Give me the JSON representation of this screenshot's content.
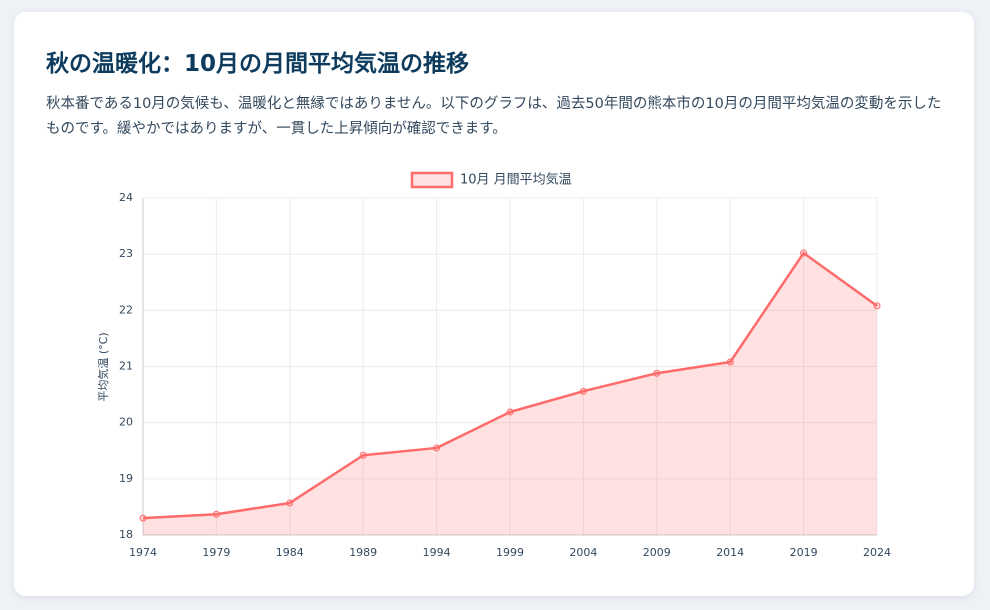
{
  "header": {
    "title": "秋の温暖化：10月の月間平均気温の推移",
    "description": "秋本番である10月の気候も、温暖化と無縁ではありません。以下のグラフは、過去50年間の熊本市の10月の月間平均気温の変動を示したものです。緩やかではありますが、一貫した上昇傾向が確認できます。"
  },
  "chart_data": {
    "type": "line",
    "y_label": "平均気温 (°C)",
    "categories": [
      "1974",
      "1979",
      "1984",
      "1989",
      "1994",
      "1999",
      "2004",
      "2009",
      "2014",
      "2019",
      "2024"
    ],
    "series": [
      {
        "name": "10月 月間平均気温",
        "color": "#ff6b6b",
        "fill": "rgba(255,107,107,0.2)",
        "values": [
          18.3,
          18.37,
          18.57,
          19.42,
          19.55,
          20.19,
          20.56,
          20.88,
          21.08,
          23.02,
          22.08
        ]
      }
    ],
    "ylim": [
      18,
      24
    ],
    "yticks": [
      18,
      19,
      20,
      21,
      22,
      23,
      24
    ],
    "grid": true,
    "legend": "top"
  }
}
